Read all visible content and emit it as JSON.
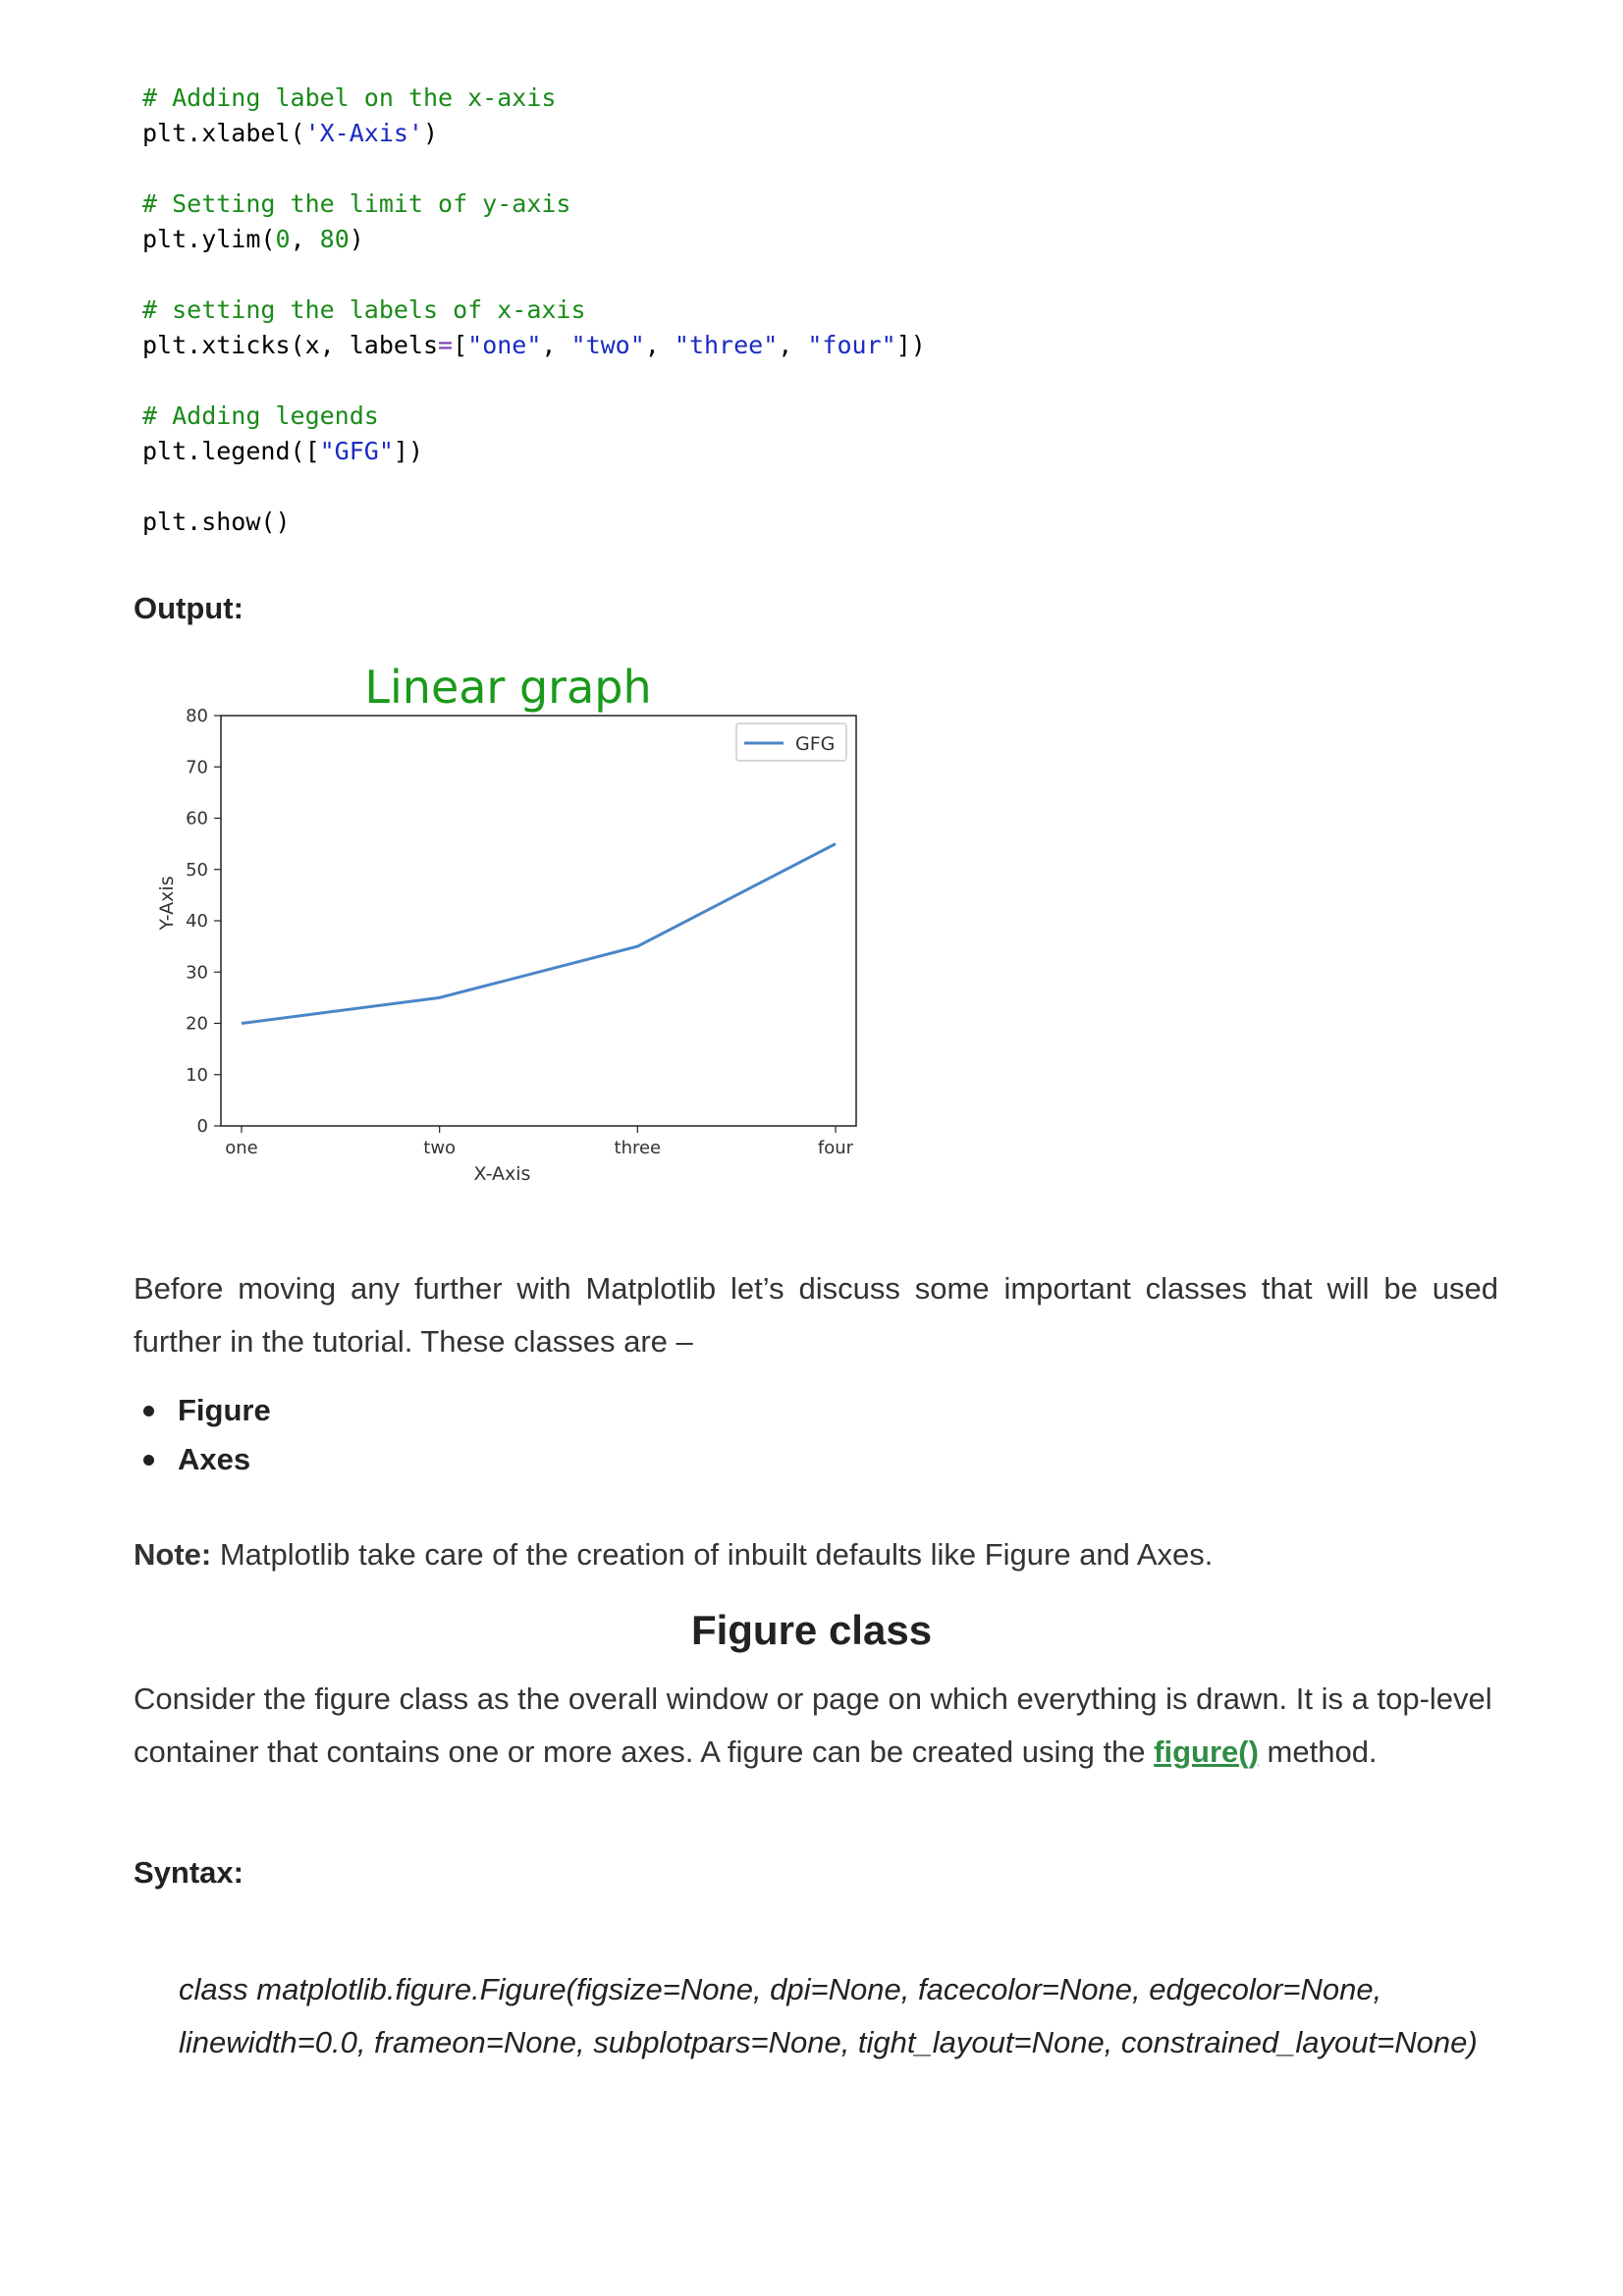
{
  "code": {
    "comment_xlabel": "# Adding label on the x-axis",
    "xlabel_call": "plt.xlabel(",
    "xlabel_str": "'X-Axis'",
    "xlabel_close": ")",
    "comment_ylim": "# Setting the limit of y-axis",
    "ylim_call": "plt.ylim(",
    "ylim_lo": "0",
    "ylim_sep": ", ",
    "ylim_hi": "80",
    "ylim_close": ")",
    "comment_xticks": "# setting the labels of x-axis",
    "xticks_call": "plt.xticks(x, labels",
    "xticks_eq": "=",
    "xticks_open": "[",
    "xticks_s1": "\"one\"",
    "xticks_s2": "\"two\"",
    "xticks_s3": "\"three\"",
    "xticks_s4": "\"four\"",
    "xticks_sep": ", ",
    "xticks_close": "])",
    "comment_legend": "# Adding legends",
    "legend_call": "plt.legend([",
    "legend_str": "\"GFG\"",
    "legend_close": "])",
    "show_call": "plt.show()"
  },
  "output_label": "Output:",
  "chart_data": {
    "type": "line",
    "title": "Linear graph",
    "title_color": "#1a9a1a",
    "xlabel": "X-Axis",
    "ylabel": "Y-Axis",
    "categories": [
      "one",
      "two",
      "three",
      "four"
    ],
    "series": [
      {
        "name": "GFG",
        "values": [
          20,
          25,
          35,
          55
        ],
        "color": "#4a86c8"
      }
    ],
    "ylim": [
      0,
      80
    ],
    "yticks": [
      0,
      10,
      20,
      30,
      40,
      50,
      60,
      70,
      80
    ],
    "grid": false,
    "legend_position": "top-right"
  },
  "intro_paragraph": "Before moving any further with Matplotlib let’s discuss some important classes that will be used further in the tutorial. These classes are –",
  "classes_list": [
    "Figure",
    "Axes"
  ],
  "note": {
    "label": "Note:",
    "text": " Matplotlib take care of the creation of inbuilt defaults like Figure and Axes."
  },
  "figure_section": {
    "title": "Figure class",
    "paragraph_before_link": "Consider the figure class as the overall window or page on which everything is drawn. It is a top-level container that contains one or more axes. A figure can be created using the ",
    "link_text": "figure()",
    "paragraph_after_link": " method.",
    "syntax_label": "Syntax:",
    "syntax_text": "class matplotlib.figure.Figure(figsize=None, dpi=None, facecolor=None, edgecolor=None, linewidth=0.0, frameon=None, subplotpars=None, tight_layout=None, constrained_layout=None)"
  }
}
